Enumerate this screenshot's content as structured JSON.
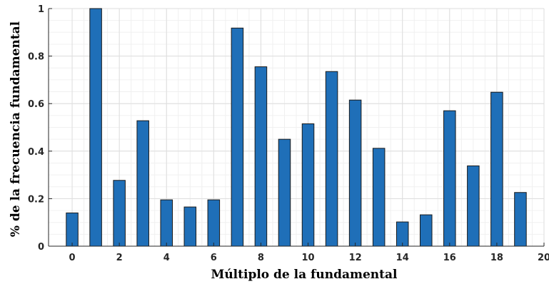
{
  "chart_data": {
    "type": "bar",
    "title": "",
    "xlabel": "Múltiplo de la fundamental",
    "ylabel": "% de la frecuencia fundamental",
    "x": [
      0,
      1,
      2,
      3,
      4,
      5,
      6,
      7,
      8,
      9,
      10,
      11,
      12,
      13,
      14,
      15,
      16,
      17,
      18,
      19
    ],
    "values": [
      0.14,
      1.0,
      0.277,
      0.528,
      0.195,
      0.165,
      0.195,
      0.918,
      0.755,
      0.45,
      0.515,
      0.735,
      0.615,
      0.412,
      0.102,
      0.132,
      0.57,
      0.338,
      0.648,
      0.226
    ],
    "xlim": [
      -1,
      20
    ],
    "ylim": [
      0,
      1
    ],
    "xticks": [
      "0",
      "2",
      "4",
      "6",
      "8",
      "10",
      "12",
      "14",
      "16",
      "18",
      "20"
    ],
    "yticks": [
      "0",
      "0.2",
      "0.4",
      "0.6",
      "0.8",
      "1"
    ],
    "grid": true,
    "minor_grid": true,
    "bar_color": "#1f6fb8",
    "bar_edge_color": "#1a1a1a"
  }
}
